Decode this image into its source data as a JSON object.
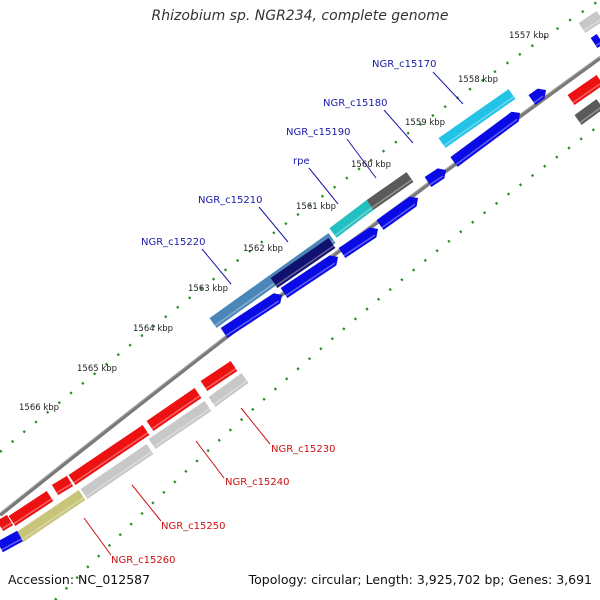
{
  "title": "Rhizobium sp. NGR234, complete genome",
  "footer": {
    "accession": "Accession: NC_012587",
    "summary": "Topology: circular; Length: 3,925,702 bp; Genes: 3,691"
  },
  "colors": {
    "tick_dots": "#2a8a2a",
    "backbone": "#888888",
    "plus_strand_label": "#1a1aaa",
    "minus_strand_label": "#cc1111",
    "cds_blue": "#0a0ae6",
    "cds_red": "#ee1111",
    "rna_gray": "#c8c8c8",
    "cog_cyan": "#22c3e6",
    "cog_teal": "#22c0c0",
    "cog_darkgray": "#5a5a5a",
    "cog_steelblue": "#4a86b8",
    "cog_navy": "#10106e",
    "cog_olive": "#c8c47a"
  },
  "tick_labels": [
    "1557 kbp",
    "1558 kbp",
    "1559 kbp",
    "1560 kbp",
    "1561 kbp",
    "1562 kbp",
    "1563 kbp",
    "1564 kbp",
    "1565 kbp",
    "1566 kbp"
  ],
  "gene_labels_top": [
    "NGR_c15170",
    "NGR_c15180",
    "NGR_c15190",
    "rpe",
    "NGR_c15210",
    "NGR_c15220"
  ],
  "gene_labels_bottom": [
    "NGR_c15230",
    "NGR_c15240",
    "NGR_c15250",
    "NGR_c15260"
  ]
}
